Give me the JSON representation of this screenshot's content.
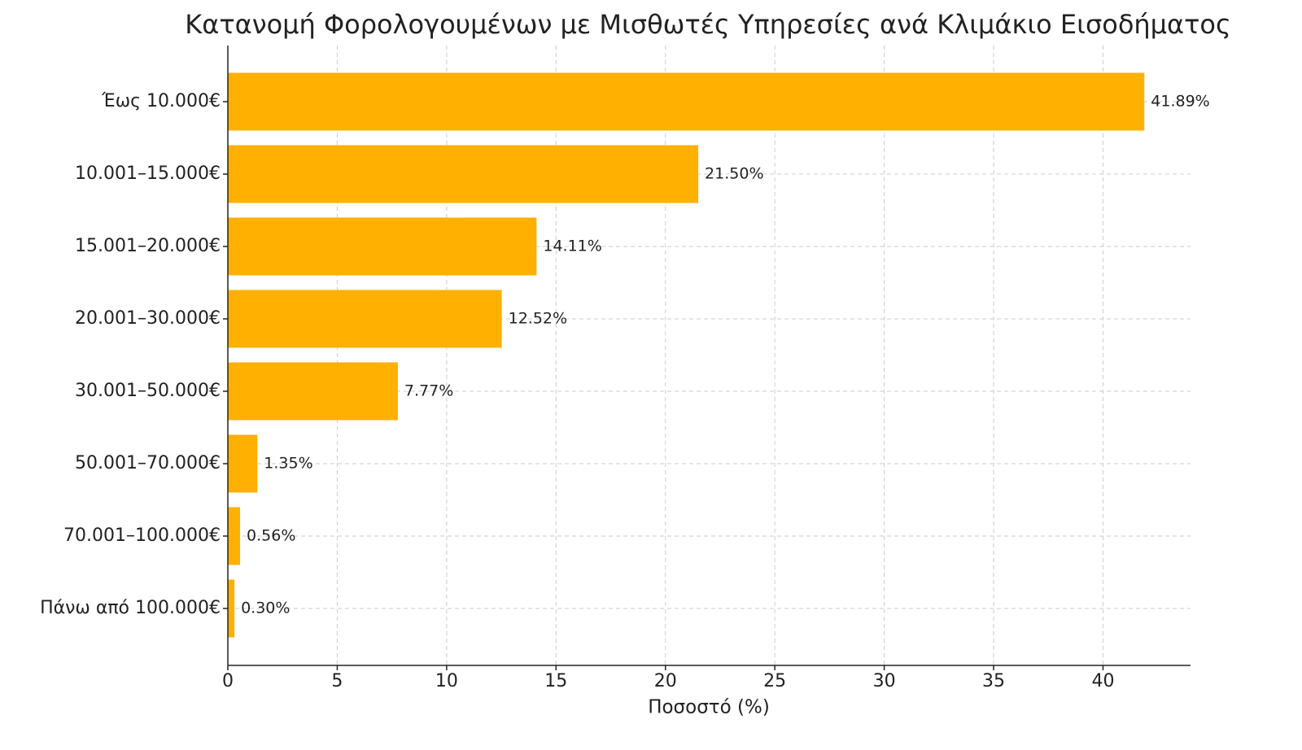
{
  "chart_data": {
    "type": "barh",
    "title": "Κατανομή Φορολογουμένων με Μισθωτές Υπηρεσίες ανά Κλιμάκιο Εισοδήματος",
    "x_label": "Ποσοστό (%)",
    "categories": [
      "Έως 10.000€",
      "10.001–15.000€",
      "15.001–20.000€",
      "20.001–30.000€",
      "30.001–50.000€",
      "50.001–70.000€",
      "70.001–100.000€",
      "Πάνω από 100.000€"
    ],
    "values": [
      41.89,
      21.5,
      14.11,
      12.52,
      7.77,
      1.35,
      0.56,
      0.3
    ],
    "value_labels": [
      "41.89%",
      "21.50%",
      "14.11%",
      "12.52%",
      "7.77%",
      "1.35%",
      "0.56%",
      "0.30%"
    ],
    "color": "#ffb000",
    "xlim": [
      0,
      44
    ],
    "xticks": [
      0,
      5,
      10,
      15,
      20,
      25,
      30,
      35,
      40
    ],
    "grid": true
  }
}
